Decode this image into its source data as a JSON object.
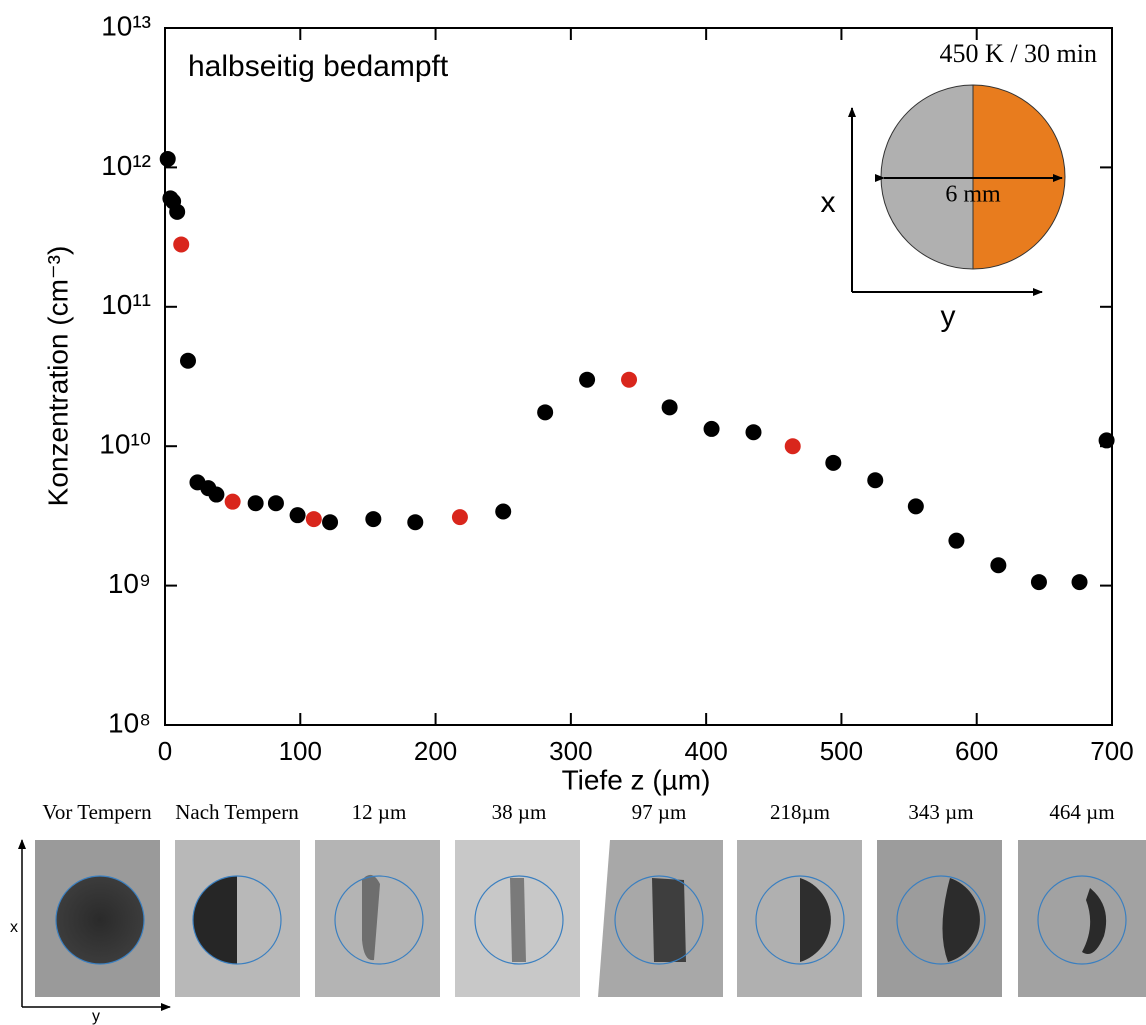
{
  "chart_data": {
    "type": "scatter",
    "annotations": [
      "halbseitig bedampft"
    ],
    "x_label": "Tiefe z (µm)",
    "y_label": "Konzentration (cm⁻³)",
    "log_y": true,
    "xlim": [
      0,
      700
    ],
    "ylim": [
      100000000.0,
      10000000000000.0
    ],
    "xticks": [
      0,
      100,
      200,
      300,
      400,
      500,
      600,
      700
    ],
    "yticks": [
      {
        "value": 100000000.0,
        "label": "10⁸"
      },
      {
        "value": 1000000000.0,
        "label": "10⁹"
      },
      {
        "value": 10000000000.0,
        "label": "10¹⁰"
      },
      {
        "value": 100000000000.0,
        "label": "10¹¹"
      },
      {
        "value": 1000000000000.0,
        "label": "10¹²"
      },
      {
        "value": 10000000000000.0,
        "label": "10¹³"
      }
    ],
    "series": [
      {
        "color": "#000000",
        "x": [
          2,
          4,
          6,
          9,
          17,
          24,
          32,
          38,
          67,
          82,
          98,
          122,
          154,
          185,
          250,
          281,
          312,
          373,
          404,
          435,
          494,
          525,
          555,
          585,
          616,
          646,
          676,
          696
        ],
        "values": [
          1150000000000.0,
          600000000000.0,
          570000000000.0,
          480000000000.0,
          41000000000.0,
          5500000000.0,
          5000000000.0,
          4500000000.0,
          3900000000.0,
          3900000000.0,
          3200000000.0,
          2850000000.0,
          3000000000.0,
          2850000000.0,
          3400000000.0,
          17500000000.0,
          30000000000.0,
          19000000000.0,
          13300000000.0,
          12600000000.0,
          7600000000.0,
          5700000000.0,
          3700000000.0,
          2100000000.0,
          1400000000.0,
          1060000000.0,
          1060000000.0,
          11000000000.0
        ]
      },
      {
        "color": "#d9261c",
        "x": [
          12,
          50,
          110,
          218,
          343,
          464
        ],
        "values": [
          280000000000.0,
          4000000000.0,
          3000000000.0,
          3100000000.0,
          30000000000.0,
          10000000000.0
        ]
      }
    ]
  },
  "inset": {
    "title": "450 K / 30 min",
    "x_axis": "x",
    "y_axis": "y",
    "diameter": "6 mm",
    "colors": [
      "#b0b0b0",
      "#e87c1e"
    ]
  },
  "images": {
    "x_axis": "x",
    "y_axis": "y",
    "labels": [
      "Vor Tempern",
      "Nach Tempern",
      "12 µm",
      "38 µm",
      "97 µm",
      "218µm",
      "343 µm",
      "464 µm"
    ]
  }
}
